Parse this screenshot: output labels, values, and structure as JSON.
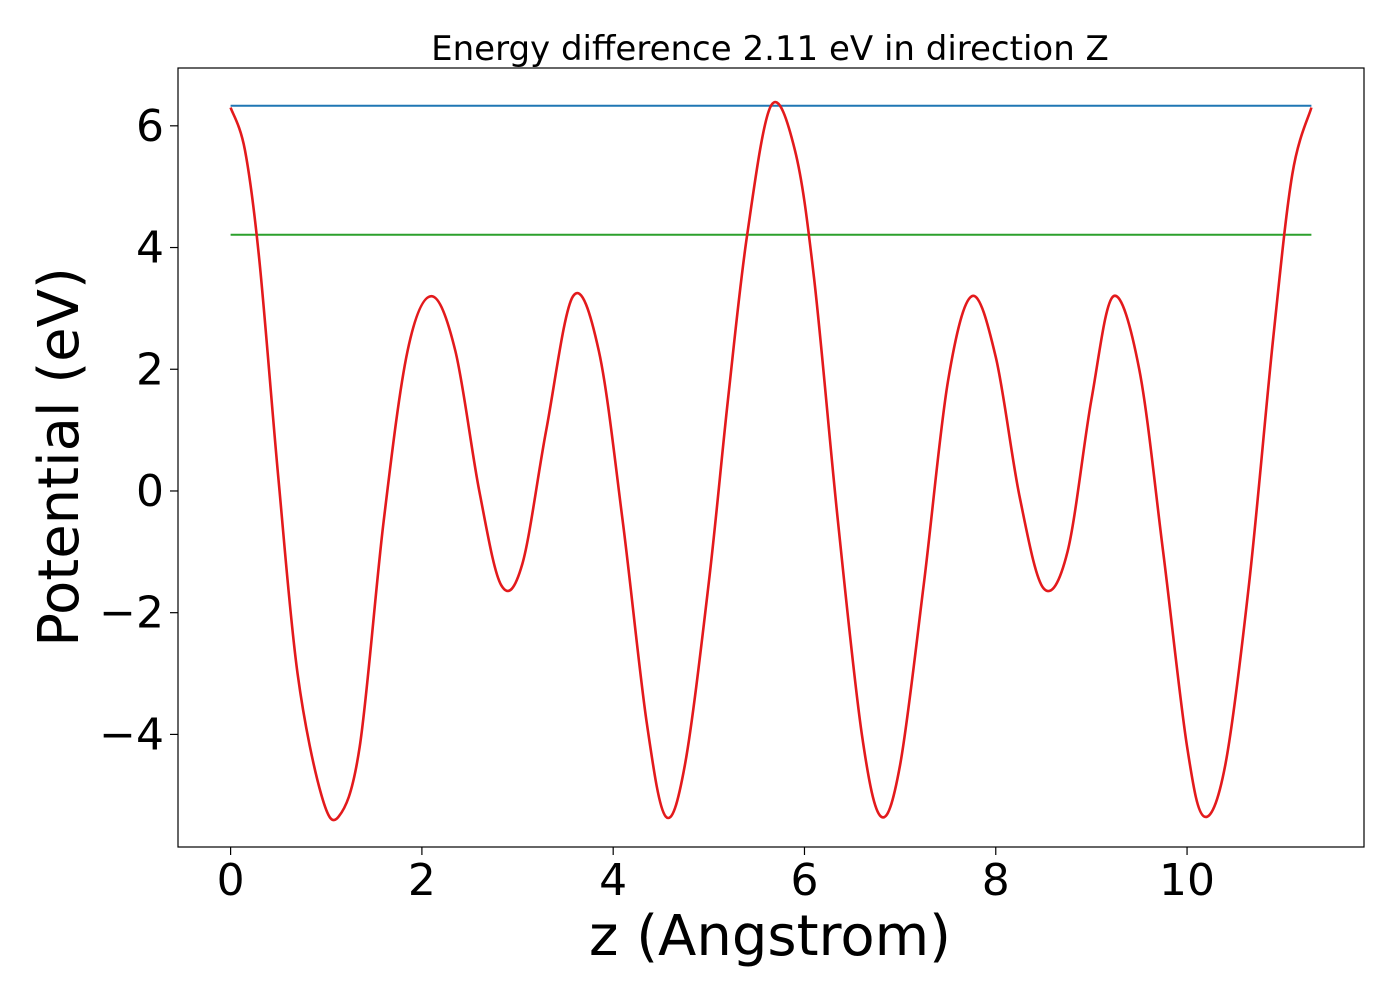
{
  "chart_data": {
    "type": "line",
    "title": "Energy difference 2.11 eV in direction Z",
    "xlabel": "z (Angstrom)",
    "ylabel": "Potential (eV)",
    "xlim": [
      -0.55,
      11.85
    ],
    "ylim": [
      -5.85,
      6.95
    ],
    "xticks": [
      0,
      2,
      4,
      6,
      8,
      10
    ],
    "xtick_labels": [
      "0",
      "2",
      "4",
      "6",
      "8",
      "10"
    ],
    "yticks": [
      -4,
      -2,
      0,
      2,
      4,
      6
    ],
    "ytick_labels": [
      "−4",
      "−2",
      "0",
      "2",
      "4",
      "6"
    ],
    "grid": false,
    "series": [
      {
        "color": "#1f77b4",
        "x": [
          0,
          11.3
        ],
        "y": [
          6.33,
          6.33
        ]
      },
      {
        "color": "#2ca02c",
        "x": [
          0,
          11.3
        ],
        "y": [
          4.21,
          4.21
        ]
      },
      {
        "color": "#e31a1c",
        "x": [
          0,
          0.15,
          0.3,
          0.5,
          0.7,
          0.95,
          1.13,
          1.35,
          1.6,
          1.85,
          2.1,
          2.35,
          2.6,
          2.83,
          3.05,
          3.3,
          3.58,
          3.85,
          4.1,
          4.35,
          4.55,
          4.75,
          5.0,
          5.2,
          5.4,
          5.65,
          5.9,
          6.1,
          6.35,
          6.6,
          6.8,
          7.0,
          7.25,
          7.5,
          7.75,
          8.0,
          8.25,
          8.5,
          8.75,
          9.0,
          9.23,
          9.5,
          9.75,
          10.0,
          10.18,
          10.4,
          10.65,
          10.9,
          11.1,
          11.3
        ],
        "y": [
          6.3,
          5.6,
          3.8,
          0.2,
          -3.0,
          -5.0,
          -5.35,
          -4.2,
          -0.5,
          2.3,
          3.2,
          2.3,
          0.0,
          -1.55,
          -1.2,
          1.0,
          3.2,
          2.3,
          -0.5,
          -3.8,
          -5.35,
          -4.5,
          -1.5,
          1.5,
          4.2,
          6.33,
          5.6,
          3.5,
          -0.5,
          -4.0,
          -5.35,
          -4.5,
          -1.5,
          1.8,
          3.2,
          2.2,
          -0.1,
          -1.6,
          -1.0,
          1.5,
          3.2,
          2.0,
          -1.0,
          -4.2,
          -5.35,
          -4.5,
          -1.5,
          2.5,
          5.2,
          6.3
        ]
      }
    ]
  }
}
